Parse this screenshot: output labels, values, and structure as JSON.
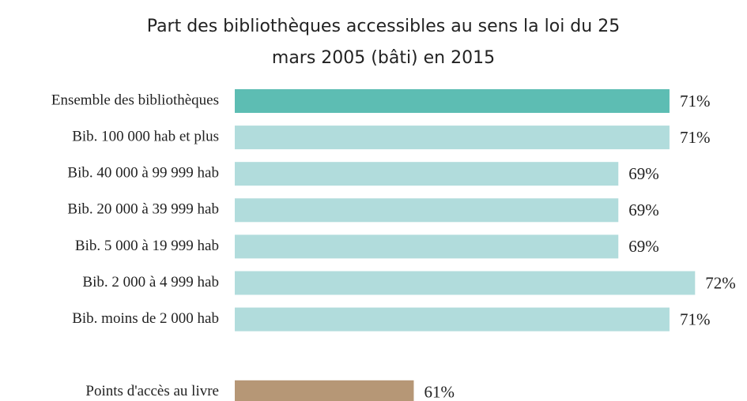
{
  "chart_data": {
    "type": "bar",
    "orientation": "horizontal",
    "title": [
      "Part des bibliothèques accessibles au sens  la loi du 25",
      "mars 2005 (bâti) en 2015"
    ],
    "categories": [
      "Ensemble des bibliothèques",
      "Bib. 100 000 hab et plus",
      "Bib. 40 000 à 99 999 hab",
      "Bib. 20 000 à 39 999 hab",
      "Bib. 5 000 à 19 999 hab",
      "Bib. 2 000 à 4 999 hab",
      "Bib. moins de 2 000 hab",
      null,
      "Points d'accès au livre"
    ],
    "values": [
      71,
      71,
      69,
      69,
      69,
      72,
      71,
      null,
      61
    ],
    "value_labels": [
      "71%",
      "71%",
      "69%",
      "69%",
      "69%",
      "72%",
      "71%",
      null,
      "61%"
    ],
    "colors": [
      "#5dbdb3",
      "#b1dcdc",
      "#b1dcdc",
      "#b1dcdc",
      "#b1dcdc",
      "#b1dcdc",
      "#b1dcdc",
      null,
      "#b69776"
    ],
    "xlim": [
      54,
      74
    ]
  }
}
